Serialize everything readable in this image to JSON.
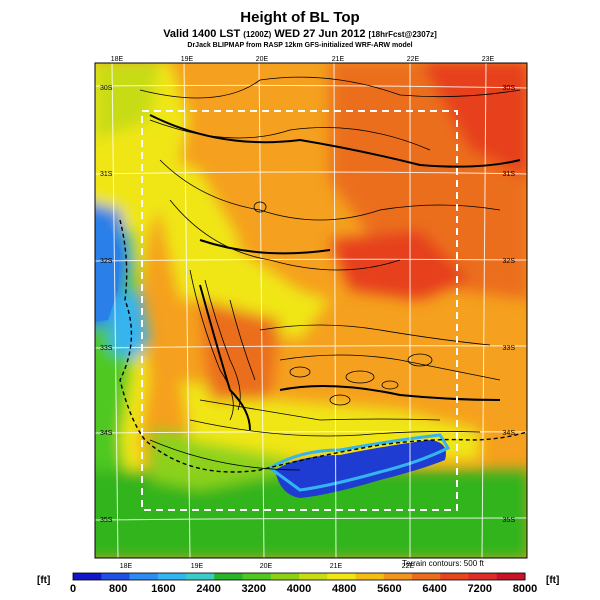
{
  "title": "Height of BL Top",
  "subtitle_main": "Valid 1400 LST",
  "subtitle_code": "(1200Z)",
  "subtitle_date": "WED 27 Jun 2012",
  "subtitle_fcst": "[18hrFcst@2307z]",
  "credit": "DrJack BLIPMAP from RASP 12km GFS-initialized WRF-ARW model",
  "terrain_note": "Terrain contours: 500 ft",
  "units": "[ft]",
  "lon_top": [
    "18E",
    "19E",
    "20E",
    "21E",
    "22E",
    "23E"
  ],
  "lon_bottom": [
    "18E",
    "19E",
    "20E",
    "21E",
    "22E"
  ],
  "lat_left": [
    "30S",
    "31S",
    "32S",
    "33S",
    "34S",
    "35S"
  ],
  "lat_right": [
    "30S",
    "31S",
    "32S",
    "33S",
    "34S",
    "35S"
  ],
  "colorbar_ticks": [
    "0",
    "800",
    "1600",
    "2400",
    "3200",
    "4000",
    "4800",
    "5600",
    "6400",
    "7200",
    "8000"
  ],
  "colorbar_colors": [
    "#1414c8",
    "#1e50e6",
    "#2c8cf2",
    "#34b4f0",
    "#3cccc8",
    "#28b428",
    "#50c820",
    "#8cd214",
    "#c8dc14",
    "#f0e614",
    "#f5be14",
    "#f0961e",
    "#eb6e1e",
    "#e6461e",
    "#dc2d28",
    "#c81428"
  ],
  "colors": {
    "ocean_blue": "#1e3cd2",
    "cape_west_blue": "#2a80e8",
    "green": "#32b41e",
    "light_green": "#8cd21e",
    "yellow": "#f0e614",
    "orange": "#f59a1e",
    "dark_orange": "#eb6e1e",
    "red": "#e6401e"
  }
}
